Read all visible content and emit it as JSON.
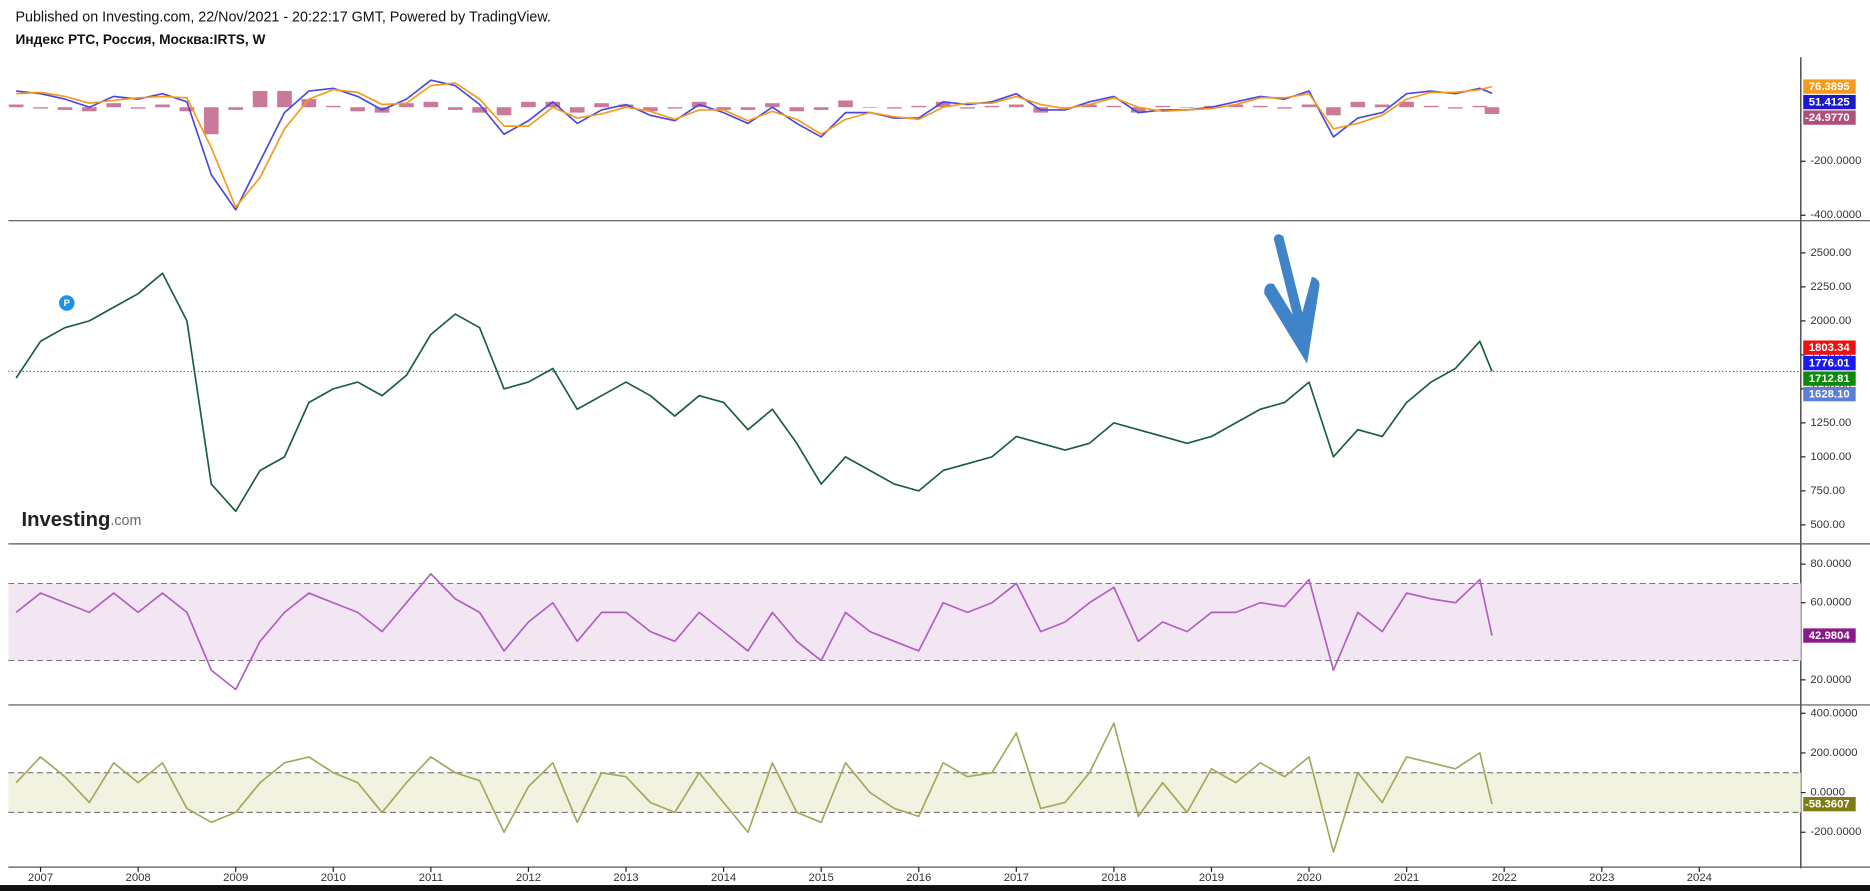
{
  "header": {
    "published": "Published on Investing.com, 22/Nov/2021 - 20:22:17 GMT, Powered by TradingView.",
    "symbol": "Индекс РТС, Россия, Москва:IRTS, W"
  },
  "watermark": {
    "brand": "Investing",
    "suffix": ".com"
  },
  "chart_data": [
    {
      "type": "line",
      "xlim": [
        2006.67,
        2025.04
      ],
      "ylim": [
        -420,
        185
      ],
      "yticks": [
        {
          "value": -200,
          "label": "-200.0000"
        },
        {
          "value": -400,
          "label": "-400.0000"
        }
      ],
      "x": [
        2006.75,
        2007,
        2007.25,
        2007.5,
        2007.75,
        2008,
        2008.25,
        2008.5,
        2008.75,
        2009,
        2009.25,
        2009.5,
        2009.75,
        2010,
        2010.25,
        2010.5,
        2010.75,
        2011,
        2011.25,
        2011.5,
        2011.75,
        2012,
        2012.25,
        2012.5,
        2012.75,
        2013,
        2013.25,
        2013.5,
        2013.75,
        2014,
        2014.25,
        2014.5,
        2014.75,
        2015,
        2015.25,
        2015.5,
        2015.75,
        2016,
        2016.25,
        2016.5,
        2016.75,
        2017,
        2017.25,
        2017.5,
        2017.75,
        2018,
        2018.25,
        2018.5,
        2018.75,
        2019,
        2019.25,
        2019.5,
        2019.75,
        2020,
        2020.25,
        2020.5,
        2020.75,
        2021,
        2021.25,
        2021.5,
        2021.75,
        2021.875
      ],
      "series": [
        {
          "type": "bar",
          "color": "#c2628a",
          "values": [
            10,
            -5,
            -10,
            -15,
            15,
            -5,
            10,
            -15,
            -100,
            -10,
            60,
            60,
            30,
            5,
            -15,
            -20,
            15,
            20,
            -10,
            -20,
            -30,
            20,
            20,
            -20,
            15,
            10,
            -15,
            -5,
            20,
            -10,
            -10,
            15,
            -15,
            -10,
            25,
            0,
            -5,
            5,
            20,
            -5,
            5,
            10,
            -20,
            -5,
            10,
            5,
            -20,
            5,
            0,
            5,
            10,
            5,
            -5,
            10,
            -30,
            20,
            10,
            20,
            5,
            -5,
            5,
            -24.977
          ]
        },
        {
          "color": "#4a4adf",
          "values": [
            60,
            50,
            30,
            0,
            40,
            30,
            50,
            20,
            -250,
            -380,
            -200,
            -20,
            60,
            70,
            40,
            -10,
            30,
            100,
            80,
            10,
            -100,
            -50,
            20,
            -60,
            -10,
            10,
            -30,
            -50,
            10,
            -20,
            -60,
            0,
            -60,
            -110,
            -20,
            -20,
            -40,
            -40,
            20,
            10,
            20,
            50,
            -10,
            -10,
            20,
            40,
            -20,
            -10,
            -10,
            0,
            20,
            40,
            30,
            60,
            -110,
            -40,
            -20,
            50,
            60,
            50,
            70,
            51.4125
          ]
        },
        {
          "color": "#f59a1c",
          "values": [
            50,
            55,
            40,
            15,
            25,
            35,
            40,
            35,
            -150,
            -370,
            -260,
            -80,
            30,
            65,
            55,
            10,
            15,
            80,
            90,
            30,
            -70,
            -70,
            0,
            -40,
            -25,
            0,
            -15,
            -45,
            -10,
            -10,
            -50,
            -15,
            -45,
            -100,
            -45,
            -20,
            -35,
            -45,
            0,
            15,
            15,
            40,
            10,
            -5,
            10,
            35,
            0,
            -15,
            -10,
            -5,
            10,
            35,
            35,
            50,
            -80,
            -60,
            -30,
            30,
            55,
            55,
            65,
            76.3895
          ]
        }
      ],
      "last_values": [
        {
          "value": 76.3895,
          "label": "76.3895",
          "color": "#f59a1c"
        },
        {
          "value": 51.4125,
          "label": "51.4125",
          "color": "#1a1acc"
        },
        {
          "value": -24.977,
          "label": "-24.9770",
          "color": "#b0507a"
        }
      ]
    },
    {
      "type": "line",
      "xlim": [
        2006.67,
        2025.04
      ],
      "ylim": [
        360,
        2737
      ],
      "last_line": true,
      "marker_label": "P",
      "yticks": [
        {
          "value": 500,
          "label": "500.00"
        },
        {
          "value": 750,
          "label": "750.00"
        },
        {
          "value": 1000,
          "label": "1000.00"
        },
        {
          "value": 1250,
          "label": "1250.00"
        },
        {
          "value": 1500,
          "label": "1500.00"
        },
        {
          "value": 1750,
          "label": "1750.00"
        },
        {
          "value": 2000,
          "label": "2000.00"
        },
        {
          "value": 2250,
          "label": "2250.00"
        },
        {
          "value": 2500,
          "label": "2500.00"
        }
      ],
      "x": [
        2006.75,
        2007,
        2007.25,
        2007.5,
        2007.75,
        2008,
        2008.25,
        2008.5,
        2008.75,
        2009,
        2009.25,
        2009.5,
        2009.75,
        2010,
        2010.25,
        2010.5,
        2010.75,
        2011,
        2011.25,
        2011.5,
        2011.75,
        2012,
        2012.25,
        2012.5,
        2012.75,
        2013,
        2013.25,
        2013.5,
        2013.75,
        2014,
        2014.25,
        2014.5,
        2014.75,
        2015,
        2015.25,
        2015.5,
        2015.75,
        2016,
        2016.25,
        2016.5,
        2016.75,
        2017,
        2017.25,
        2017.5,
        2017.75,
        2018,
        2018.25,
        2018.5,
        2018.75,
        2019,
        2019.25,
        2019.5,
        2019.75,
        2020,
        2020.25,
        2020.5,
        2020.75,
        2021,
        2021.25,
        2021.5,
        2021.75,
        2021.875
      ],
      "series": [
        {
          "color": "#1b5e3a",
          "values": [
            1580,
            1850,
            1950,
            2000,
            2100,
            2200,
            2350,
            2000,
            800,
            600,
            900,
            1000,
            1400,
            1500,
            1550,
            1450,
            1600,
            1900,
            2050,
            1950,
            1500,
            1550,
            1650,
            1350,
            1450,
            1550,
            1450,
            1300,
            1450,
            1400,
            1200,
            1350,
            1100,
            800,
            1000,
            900,
            800,
            750,
            900,
            950,
            1000,
            1150,
            1100,
            1050,
            1100,
            1250,
            1200,
            1150,
            1100,
            1150,
            1250,
            1350,
            1400,
            1550,
            1000,
            1200,
            1150,
            1400,
            1550,
            1650,
            1850,
            1628.1
          ]
        }
      ],
      "last_values": [
        {
          "value": 1803.34,
          "label": "1803.34",
          "color": "#ee1111"
        },
        {
          "value": 1776.01,
          "label": "1776.01",
          "color": "#1a1aee"
        },
        {
          "value": 1712.81,
          "label": "1712.81",
          "color": "#0a8a0a"
        },
        {
          "value": 1628.1,
          "label": "1628.10",
          "color": "#5b7fd6"
        }
      ]
    },
    {
      "type": "line",
      "xlim": [
        2006.67,
        2025.04
      ],
      "ylim": [
        7,
        90.5
      ],
      "band": [
        30,
        70
      ],
      "band_color": "#f3e6f3",
      "yticks": [
        {
          "value": 80,
          "label": "80.0000"
        },
        {
          "value": 60,
          "label": "60.0000"
        },
        {
          "value": 20,
          "label": "20.0000"
        }
      ],
      "x": [
        2006.75,
        2007,
        2007.25,
        2007.5,
        2007.75,
        2008,
        2008.25,
        2008.5,
        2008.75,
        2009,
        2009.25,
        2009.5,
        2009.75,
        2010,
        2010.25,
        2010.5,
        2010.75,
        2011,
        2011.25,
        2011.5,
        2011.75,
        2012,
        2012.25,
        2012.5,
        2012.75,
        2013,
        2013.25,
        2013.5,
        2013.75,
        2014,
        2014.25,
        2014.5,
        2014.75,
        2015,
        2015.25,
        2015.5,
        2015.75,
        2016,
        2016.25,
        2016.5,
        2016.75,
        2017,
        2017.25,
        2017.5,
        2017.75,
        2018,
        2018.25,
        2018.5,
        2018.75,
        2019,
        2019.25,
        2019.5,
        2019.75,
        2020,
        2020.25,
        2020.5,
        2020.75,
        2021,
        2021.25,
        2021.5,
        2021.75,
        2021.875
      ],
      "series": [
        {
          "color": "#b25dc2",
          "values": [
            55,
            65,
            60,
            55,
            65,
            55,
            65,
            55,
            25,
            15,
            40,
            55,
            65,
            60,
            55,
            45,
            60,
            75,
            62,
            55,
            35,
            50,
            60,
            40,
            55,
            55,
            45,
            40,
            55,
            45,
            35,
            55,
            40,
            30,
            55,
            45,
            40,
            35,
            60,
            55,
            60,
            70,
            45,
            50,
            60,
            68,
            40,
            50,
            45,
            55,
            55,
            60,
            58,
            72,
            25,
            55,
            45,
            65,
            62,
            60,
            72,
            42.9804
          ]
        }
      ],
      "last_values": [
        {
          "value": 42.9804,
          "label": "42.9804",
          "color": "#8a1a8a"
        }
      ]
    },
    {
      "type": "line",
      "xlim": [
        2006.67,
        2025.04
      ],
      "ylim": [
        -376,
        442
      ],
      "band": [
        -100,
        100
      ],
      "band_color": "#f1f2e0",
      "yticks": [
        {
          "value": 400,
          "label": "400.0000"
        },
        {
          "value": 200,
          "label": "200.0000"
        },
        {
          "value": 0,
          "label": "0.0000"
        },
        {
          "value": -200,
          "label": "-200.0000"
        }
      ],
      "xticks": [
        2007,
        2008,
        2009,
        2010,
        2011,
        2012,
        2013,
        2014,
        2015,
        2016,
        2017,
        2018,
        2019,
        2020,
        2021,
        2022,
        2023,
        2024
      ],
      "x": [
        2006.75,
        2007,
        2007.25,
        2007.5,
        2007.75,
        2008,
        2008.25,
        2008.5,
        2008.75,
        2009,
        2009.25,
        2009.5,
        2009.75,
        2010,
        2010.25,
        2010.5,
        2010.75,
        2011,
        2011.25,
        2011.5,
        2011.75,
        2012,
        2012.25,
        2012.5,
        2012.75,
        2013,
        2013.25,
        2013.5,
        2013.75,
        2014,
        2014.25,
        2014.5,
        2014.75,
        2015,
        2015.25,
        2015.5,
        2015.75,
        2016,
        2016.25,
        2016.5,
        2016.75,
        2017,
        2017.25,
        2017.5,
        2017.75,
        2018,
        2018.25,
        2018.5,
        2018.75,
        2019,
        2019.25,
        2019.5,
        2019.75,
        2020,
        2020.25,
        2020.5,
        2020.75,
        2021,
        2021.25,
        2021.5,
        2021.75,
        2021.875
      ],
      "series": [
        {
          "color": "#a3a85a",
          "values": [
            50,
            180,
            80,
            -50,
            150,
            50,
            150,
            -80,
            -150,
            -100,
            50,
            150,
            180,
            100,
            50,
            -100,
            50,
            180,
            100,
            60,
            -200,
            30,
            150,
            -150,
            100,
            80,
            -50,
            -100,
            100,
            -50,
            -200,
            150,
            -100,
            -150,
            150,
            0,
            -80,
            -120,
            150,
            80,
            100,
            300,
            -80,
            -50,
            100,
            350,
            -120,
            50,
            -100,
            120,
            50,
            150,
            80,
            180,
            -300,
            100,
            -50,
            180,
            150,
            120,
            200,
            -58.3607
          ]
        }
      ],
      "last_values": [
        {
          "value": -58.3607,
          "label": "-58.3607",
          "color": "#7d7d12"
        }
      ]
    }
  ]
}
